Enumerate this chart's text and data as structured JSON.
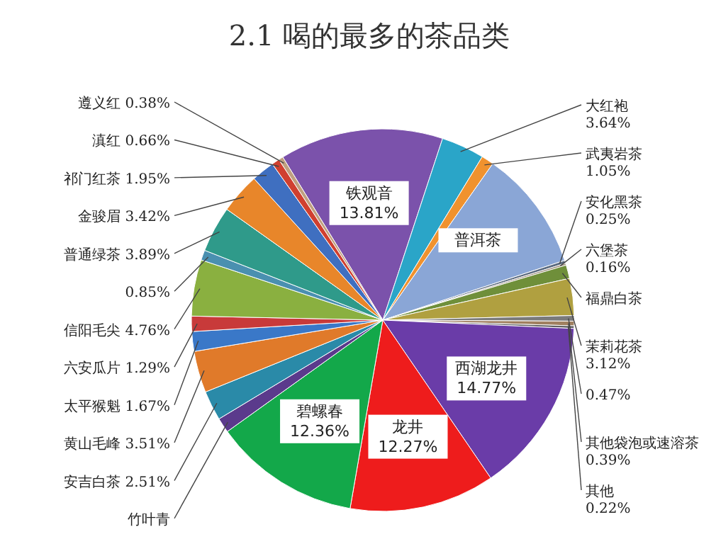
{
  "chart_data": {
    "type": "pie",
    "title": "2.1 喝的最多的茶品类",
    "categories": [
      "铁观音",
      "大红袍",
      "武夷岩茶",
      "普洱茶",
      "安化黑茶",
      "六堡茶",
      "福鼎白茶",
      "茉莉花茶",
      null,
      "其他袋泡或速溶茶",
      "其他",
      "西湖龙井",
      "龙井",
      "碧螺春",
      "竹叶青",
      "安吉白茶",
      "黄山毛峰",
      "太平猴魁",
      "六安瓜片",
      "信阳毛尖",
      null,
      "普通绿茶",
      "金骏眉",
      "祁门红茶",
      "滇红",
      "遵义红"
    ],
    "values": [
      13.81,
      3.64,
      1.05,
      10.2,
      0.25,
      0.16,
      1.14,
      3.12,
      0.47,
      0.39,
      0.22,
      14.77,
      12.27,
      12.36,
      1.26,
      2.51,
      3.51,
      1.67,
      1.29,
      4.76,
      0.85,
      3.89,
      3.42,
      1.95,
      0.66,
      0.38
    ],
    "value_labels": [
      "13.81%",
      "3.64%",
      "1.05%",
      null,
      "0.25%",
      "0.16%",
      null,
      "3.12%",
      "0.47%",
      "0.39%",
      "0.22%",
      "14.77%",
      "12.27%",
      "12.36%",
      null,
      "2.51%",
      "3.51%",
      "1.67%",
      "1.29%",
      "4.76%",
      "0.85%",
      "3.89%",
      "3.42%",
      "1.95%",
      "0.66%",
      "0.38%"
    ],
    "colors": [
      "#7b52ab",
      "#2aa5c8",
      "#f0922e",
      "#8aa6d6",
      "#5a6a80",
      "#9b8a7a",
      "#6f8f3a",
      "#b0a040",
      "#7a7a7a",
      "#a08060",
      "#606060",
      "#6a3ca8",
      "#ee1c1c",
      "#13a84a",
      "#5b3a8c",
      "#2a8aa8",
      "#e07a2a",
      "#3a78c8",
      "#c83a3a",
      "#8ab040",
      "#4a90b0",
      "#2f9a8a",
      "#e8862a",
      "#3f6fc0",
      "#d04030",
      "#c0a080"
    ]
  }
}
